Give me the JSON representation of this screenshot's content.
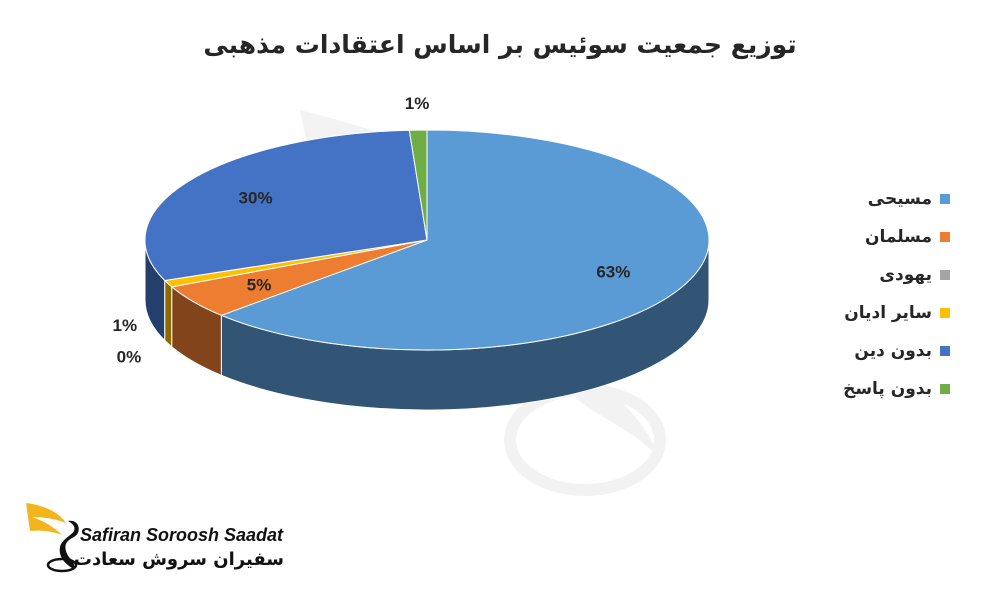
{
  "chart_data": {
    "type": "pie",
    "title": "توزیع جمعیت سوئیس بر اساس اعتقادات مذهبی",
    "categories": [
      "مسیحی",
      "مسلمان",
      "یهودی",
      "سایر ادیان",
      "بدون دین",
      "بدون پاسخ"
    ],
    "values": [
      63,
      5,
      0,
      1,
      30,
      1
    ],
    "data_labels": [
      "63%",
      "5%",
      "0%",
      "1%",
      "30%",
      "1%"
    ],
    "unit": "%",
    "colors": [
      "#5b9bd5",
      "#ed7d31",
      "#a5a5a5",
      "#ffc000",
      "#4472c4",
      "#70ad47"
    ],
    "legend_position": "right",
    "style": "3d"
  },
  "logo": {
    "latin": "Safiran Soroosh Saadat",
    "persian": "سفیران سروش سعادت"
  }
}
